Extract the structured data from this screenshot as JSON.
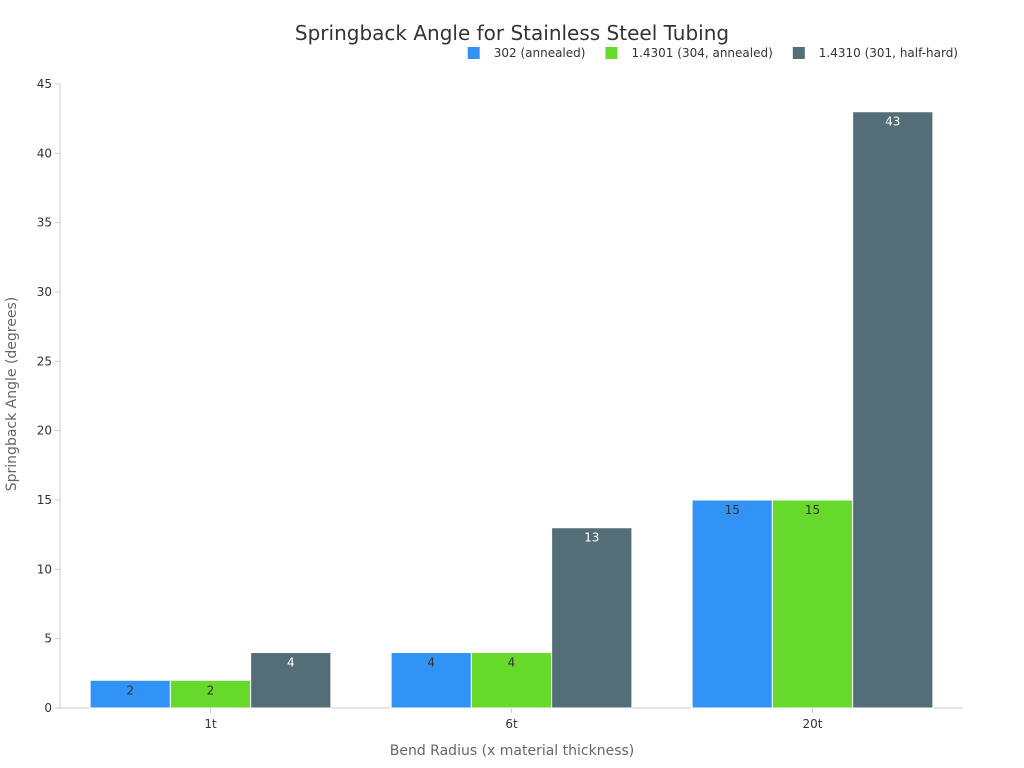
{
  "chart_data": {
    "type": "bar",
    "title": "Springback Angle for Stainless Steel Tubing",
    "xlabel": "Bend Radius (x material thickness)",
    "ylabel": "Springback Angle (degrees)",
    "categories": [
      "1t",
      "6t",
      "20t"
    ],
    "ylim": [
      0,
      45
    ],
    "yticks": [
      0,
      5,
      10,
      15,
      20,
      25,
      30,
      35,
      40,
      45
    ],
    "grid": false,
    "legend_position": "top-right",
    "series": [
      {
        "name": "302 (annealed)",
        "color": "#3093f5",
        "label_color": "dark",
        "values": [
          2,
          4,
          15
        ]
      },
      {
        "name": "1.4301 (304, annealed)",
        "color": "#66d92a",
        "label_color": "dark",
        "values": [
          2,
          4,
          15
        ]
      },
      {
        "name": "1.4310 (301, half-hard)",
        "color": "#546e78",
        "label_color": "light",
        "values": [
          4,
          13,
          43
        ]
      }
    ]
  }
}
